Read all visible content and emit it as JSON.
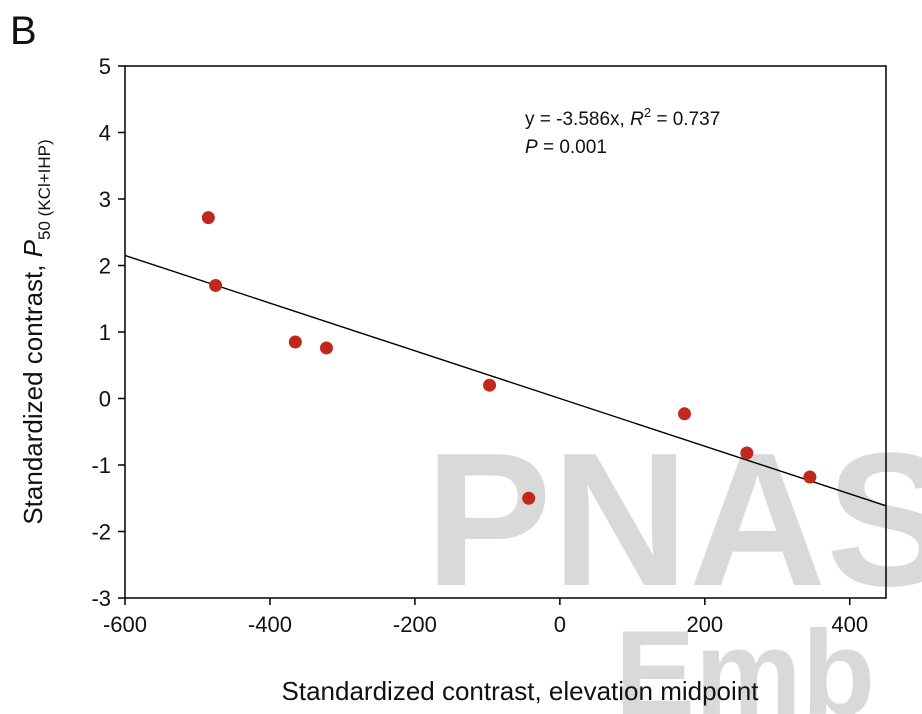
{
  "panel_label": "B",
  "watermark": {
    "line1": "PNAS",
    "line2": "Emb"
  },
  "colors": {
    "point": "#c0281e",
    "line": "#000000",
    "watermark": "#d9d9d9"
  },
  "chart_data": {
    "type": "scatter",
    "x": [
      -485,
      -475,
      -365,
      -322,
      -97,
      -43,
      172,
      258,
      345
    ],
    "y": [
      2.72,
      1.7,
      0.85,
      0.76,
      0.2,
      -1.5,
      -0.23,
      -0.82,
      -1.18
    ],
    "fit": {
      "slope_per_unit": -0.003586,
      "intercept": 0
    },
    "xlim": [
      -600,
      450
    ],
    "ylim": [
      -3,
      5
    ],
    "xticks": [
      "-600",
      "-400",
      "-200",
      "0",
      "200",
      "400"
    ],
    "xtick_values": [
      -600,
      -400,
      -200,
      0,
      200,
      400
    ],
    "yticks": [
      "5",
      "4",
      "3",
      "2",
      "1",
      "0",
      "-1",
      "-2",
      "-3"
    ],
    "ytick_values": [
      5,
      4,
      3,
      2,
      1,
      0,
      -1,
      -2,
      -3
    ],
    "xlabel": "Standardized contrast, elevation midpoint",
    "ylabel_main": "Standardized contrast, ",
    "ylabel_var": "P",
    "ylabel_sub": "50 (KCl+IHP)",
    "annotation": {
      "eq": "y = -3.586x, ",
      "r": "R",
      "r_sup": "2",
      "r_val": " = 0.737",
      "p": "P",
      "p_val": " = 0.001"
    }
  }
}
